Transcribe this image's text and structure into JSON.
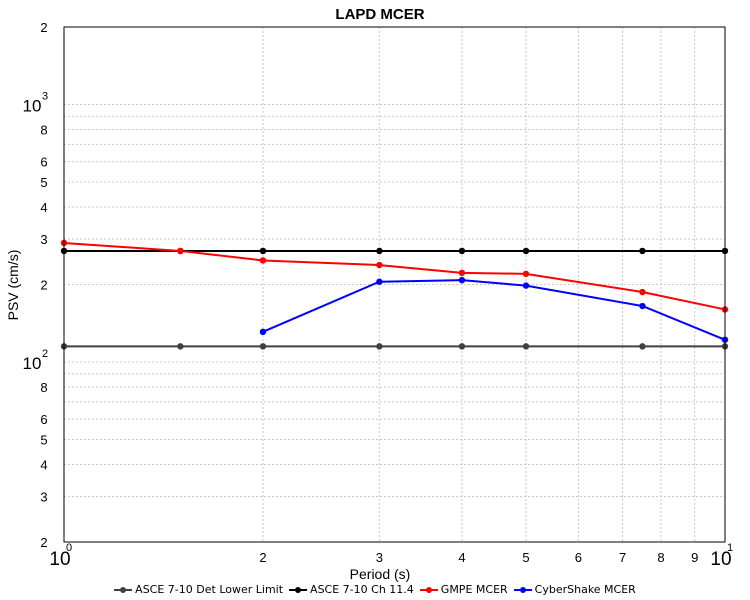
{
  "chart_data": {
    "type": "line",
    "title": "LAPD MCER",
    "xlabel": "Period (s)",
    "ylabel": "PSV (cm/s)",
    "xscale": "log",
    "yscale": "log",
    "xlim": [
      1,
      10
    ],
    "ylim": [
      20,
      2000
    ],
    "grid": true,
    "legend_position": "bottom",
    "x_major_ticks": [
      {
        "value": 1,
        "base": "10",
        "exp": "0"
      },
      {
        "value": 10,
        "base": "10",
        "exp": "1"
      }
    ],
    "x_minor_ticks": [
      {
        "value": 2,
        "label": "2"
      },
      {
        "value": 3,
        "label": "3"
      },
      {
        "value": 4,
        "label": "4"
      },
      {
        "value": 5,
        "label": "5"
      },
      {
        "value": 6,
        "label": "6"
      },
      {
        "value": 7,
        "label": "7"
      },
      {
        "value": 8,
        "label": "8"
      },
      {
        "value": 9,
        "label": "9"
      }
    ],
    "y_major_ticks": [
      {
        "value": 100,
        "base": "10",
        "exp": "2"
      },
      {
        "value": 1000,
        "base": "10",
        "exp": "3"
      }
    ],
    "y_minor_ticks": [
      {
        "value": 20,
        "label": "2"
      },
      {
        "value": 30,
        "label": "3"
      },
      {
        "value": 40,
        "label": "4"
      },
      {
        "value": 50,
        "label": "5"
      },
      {
        "value": 60,
        "label": "6"
      },
      {
        "value": 80,
        "label": "8"
      },
      {
        "value": 200,
        "label": "2"
      },
      {
        "value": 300,
        "label": "3"
      },
      {
        "value": 400,
        "label": "4"
      },
      {
        "value": 500,
        "label": "5"
      },
      {
        "value": 600,
        "label": "6"
      },
      {
        "value": 800,
        "label": "8"
      },
      {
        "value": 2000,
        "label": "2"
      }
    ],
    "y_unlabeled_gridlines": [
      70,
      90,
      700,
      900
    ],
    "series": [
      {
        "name": "ASCE 7-10 Det Lower Limit",
        "color": "#404040",
        "x": [
          1,
          1.5,
          2,
          3,
          4,
          5,
          7.5,
          10
        ],
        "y": [
          115,
          115,
          115,
          115,
          115,
          115,
          115,
          115
        ]
      },
      {
        "name": "ASCE 7-10 Ch 11.4",
        "color": "#000000",
        "x": [
          1,
          1.5,
          2,
          3,
          4,
          5,
          7.5,
          10
        ],
        "y": [
          270,
          270,
          270,
          270,
          270,
          270,
          270,
          270
        ]
      },
      {
        "name": "GMPE MCER",
        "color": "#ff0000",
        "x": [
          1,
          1.5,
          2,
          3,
          4,
          5,
          7.5,
          10
        ],
        "y": [
          290,
          270,
          248,
          238,
          222,
          220,
          187,
          160
        ]
      },
      {
        "name": "CyberShake MCER",
        "color": "#0000ff",
        "x": [
          2,
          3,
          4,
          5,
          7.5,
          10
        ],
        "y": [
          131,
          205,
          208,
          198,
          165,
          122
        ]
      }
    ]
  }
}
